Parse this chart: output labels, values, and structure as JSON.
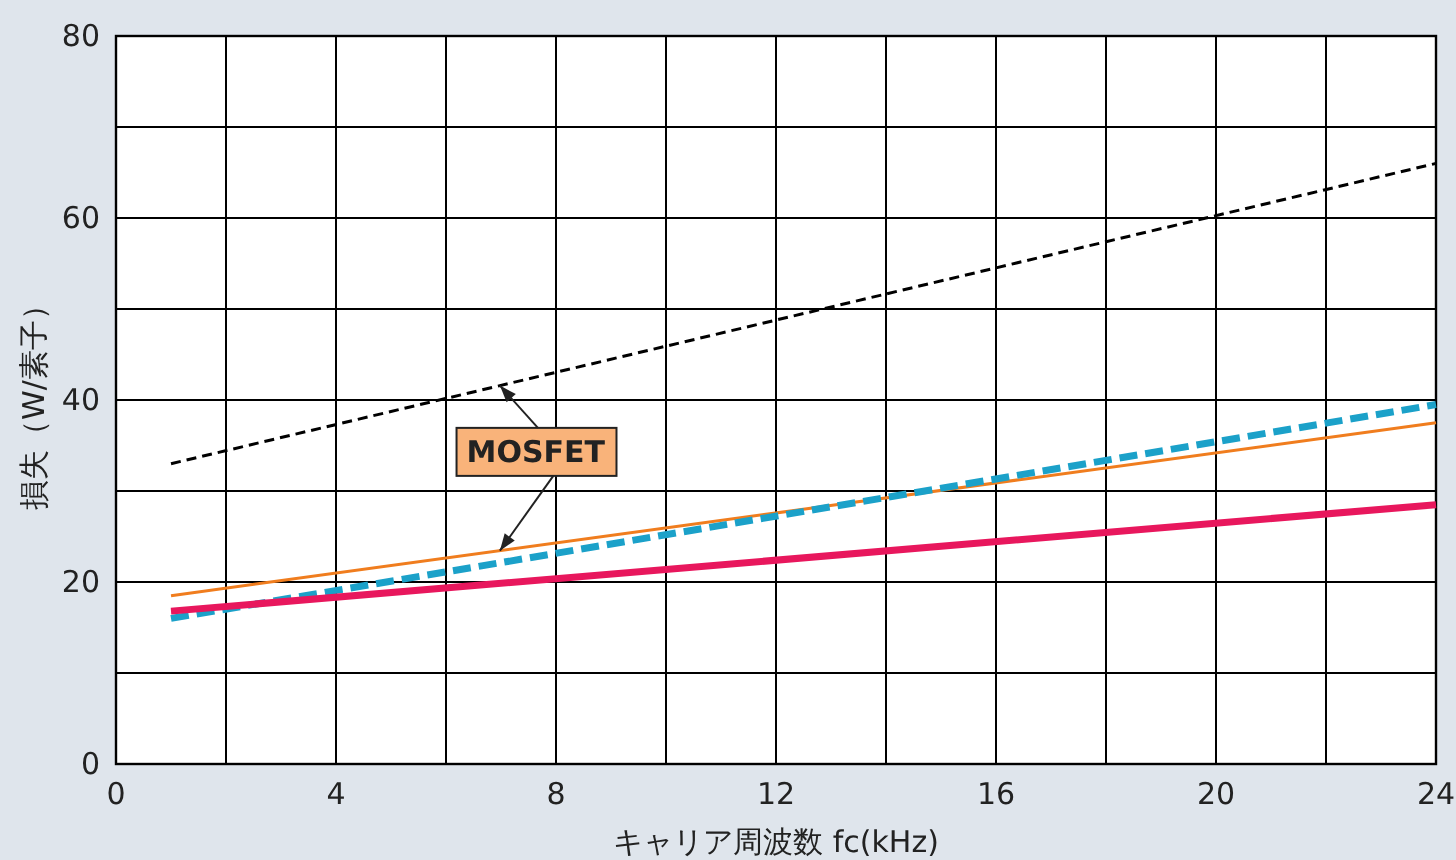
{
  "chart_data": {
    "type": "line",
    "xlabel": "キャリア周波数 fc(kHz)",
    "ylabel": "損失（W/素子）",
    "xlim": [
      0,
      24
    ],
    "ylim": [
      0,
      80
    ],
    "xticks": [
      0,
      {
        "value": 2,
        "label": null
      },
      4,
      {
        "value": 6,
        "label": null
      },
      8,
      {
        "value": 10,
        "label": null
      },
      12,
      {
        "value": 14,
        "label": null
      },
      16,
      {
        "value": 18,
        "label": null
      },
      20,
      {
        "value": 22,
        "label": null
      },
      24
    ],
    "yticks": [
      0,
      {
        "value": 10,
        "label": null
      },
      20,
      {
        "value": 30,
        "label": null
      },
      40,
      {
        "value": 50,
        "label": null
      },
      60,
      {
        "value": 70,
        "label": null
      },
      80
    ],
    "grid": true,
    "x": [
      1,
      24
    ],
    "series": [
      {
        "color": "#000000",
        "line_style": "dashed",
        "values": [
          33,
          66
        ]
      },
      {
        "color": "#f07d1e",
        "line_style": "solid",
        "values": [
          18.5,
          37.5
        ]
      },
      {
        "color": "#1ba1c9",
        "line_style": "dashed",
        "values": [
          16,
          39.5
        ]
      },
      {
        "color": "#e8175d",
        "line_style": "solid",
        "values": [
          16.8,
          28.5
        ]
      }
    ],
    "annotations": [
      "MOSFET"
    ]
  }
}
